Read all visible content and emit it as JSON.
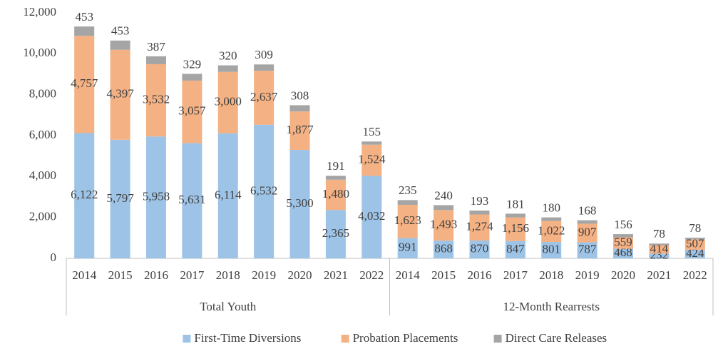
{
  "chart_data": {
    "type": "stacked_bar",
    "groups": [
      {
        "label": "Total Youth",
        "categories": [
          "2014",
          "2015",
          "2016",
          "2017",
          "2018",
          "2019",
          "2020",
          "2021",
          "2022"
        ]
      },
      {
        "label": "12-Month Rearrests",
        "categories": [
          "2014",
          "2015",
          "2016",
          "2017",
          "2018",
          "2019",
          "2020",
          "2021",
          "2022"
        ]
      }
    ],
    "series": [
      {
        "name": "First-Time Diversions",
        "color": "#9dc3e6",
        "values": [
          6122,
          5797,
          5958,
          5631,
          6114,
          6532,
          5300,
          2365,
          4032,
          991,
          868,
          870,
          847,
          801,
          787,
          468,
          232,
          424
        ],
        "value_labels": [
          "6,122",
          "5,797",
          "5,958",
          "5,631",
          "6,114",
          "6,532",
          "5,300",
          "2,365",
          "4,032",
          "991",
          "868",
          "870",
          "847",
          "801",
          "787",
          "468",
          "232",
          "424"
        ]
      },
      {
        "name": "Probation Placements",
        "color": "#f4b183",
        "values": [
          4757,
          4397,
          3532,
          3057,
          3000,
          2637,
          1877,
          1480,
          1524,
          1623,
          1493,
          1274,
          1156,
          1022,
          907,
          559,
          414,
          507
        ],
        "value_labels": [
          "4,757",
          "4,397",
          "3,532",
          "3,057",
          "3,000",
          "2,637",
          "1,877",
          "1,480",
          "1,524",
          "1,623",
          "1,493",
          "1,274",
          "1,156",
          "1,022",
          "907",
          "559",
          "414",
          "507"
        ]
      },
      {
        "name": "Direct Care Releases",
        "color": "#a5a5a5",
        "values": [
          453,
          453,
          387,
          329,
          320,
          309,
          308,
          191,
          155,
          235,
          240,
          193,
          181,
          180,
          168,
          156,
          78,
          78
        ]
      }
    ],
    "ylim": [
      0,
      12000
    ],
    "yticks": [
      0,
      {
        "value": 2000,
        "label": "2,000"
      },
      {
        "value": 4000,
        "label": "4,000"
      },
      {
        "value": 6000,
        "label": "6,000"
      },
      {
        "value": 8000,
        "label": "8,000"
      },
      {
        "value": 10000,
        "label": "10,000"
      },
      {
        "value": 12000,
        "label": "12,000"
      }
    ],
    "legend": "bottom"
  }
}
